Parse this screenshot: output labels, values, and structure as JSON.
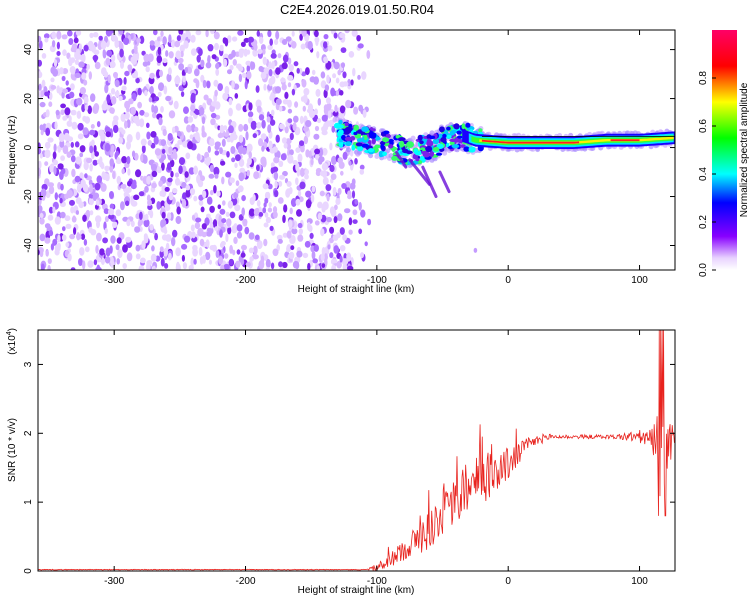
{
  "page_title": "C2E4.2026.019.01.50.R04",
  "chart_data": [
    {
      "type": "heatmap",
      "name": "spectrogram",
      "xlabel": "Height of straight line (km)",
      "ylabel": "Frequency (Hz)",
      "xlim": [
        -358,
        127
      ],
      "ylim": [
        -50,
        48
      ],
      "x_ticks": [
        -300,
        -200,
        -100,
        0,
        100
      ],
      "x_tick_labels": [
        "-300",
        "-200",
        "-100",
        "0",
        "100"
      ],
      "y_ticks": [
        40,
        20,
        0,
        -20,
        -40
      ],
      "y_tick_labels": [
        "40",
        "20",
        "0",
        "-20",
        "-40"
      ],
      "noise_region_x": [
        -358,
        -115
      ],
      "transition_region_x": [
        -130,
        -20
      ],
      "tone_track": {
        "x": [
          -130,
          -110,
          -90,
          -75,
          -60,
          -45,
          -35,
          -25,
          0,
          25,
          50,
          75,
          100,
          127
        ],
        "y": [
          6,
          3,
          1,
          -2,
          0,
          4,
          5,
          3,
          2,
          2,
          2,
          3,
          3,
          4
        ]
      },
      "colorbar": {
        "label": "Normalized spectral amplitude",
        "range": [
          0,
          1
        ],
        "ticks": [
          0.0,
          0.2,
          0.4,
          0.6,
          0.8
        ],
        "tick_labels": [
          "0.0",
          "0.2",
          "0.4",
          "0.6",
          "0.8"
        ],
        "colors": [
          "#ffffff",
          "#8800ff",
          "#0000ff",
          "#00ffff",
          "#00ff00",
          "#ffff00",
          "#ff0000",
          "#ff0066"
        ]
      }
    },
    {
      "type": "line",
      "name": "snr",
      "xlabel": "Height of straight line (km)",
      "ylabel": "SNR (10 * v/v)",
      "multiplier_label": "(x10",
      "multiplier_exponent": "4",
      "xlim": [
        -358,
        127
      ],
      "ylim": [
        0,
        3.5
      ],
      "x_ticks": [
        -300,
        -200,
        -100,
        0,
        100
      ],
      "x_tick_labels": [
        "-300",
        "-200",
        "-100",
        "0",
        "100"
      ],
      "y_ticks": [
        0,
        1,
        2,
        3
      ],
      "y_tick_labels": [
        "0",
        "1",
        "2",
        "3"
      ],
      "color": "#e8231e",
      "envelope": {
        "x": [
          -358,
          -110,
          -100,
          -90,
          -80,
          -70,
          -60,
          -50,
          -40,
          -30,
          -20,
          -10,
          0,
          10,
          20,
          30,
          40,
          60,
          80,
          90,
          100,
          110,
          115,
          120,
          127
        ],
        "y": [
          0.02,
          0.02,
          0.05,
          0.15,
          0.3,
          0.45,
          0.6,
          0.85,
          1.0,
          1.2,
          1.35,
          1.45,
          1.55,
          1.75,
          1.88,
          1.95,
          1.95,
          1.95,
          1.95,
          1.95,
          1.95,
          1.9,
          1.9,
          1.92,
          1.9
        ]
      },
      "noise_amplitude": {
        "x": [
          -358,
          -110,
          -100,
          -80,
          -60,
          -40,
          -20,
          0,
          20,
          40,
          80,
          95,
          105,
          112,
          116,
          120,
          127
        ],
        "y": [
          0.005,
          0.005,
          0.05,
          0.15,
          0.3,
          0.35,
          0.4,
          0.25,
          0.08,
          0.03,
          0.03,
          0.08,
          0.12,
          0.25,
          0.9,
          0.7,
          0.02
        ]
      }
    }
  ]
}
